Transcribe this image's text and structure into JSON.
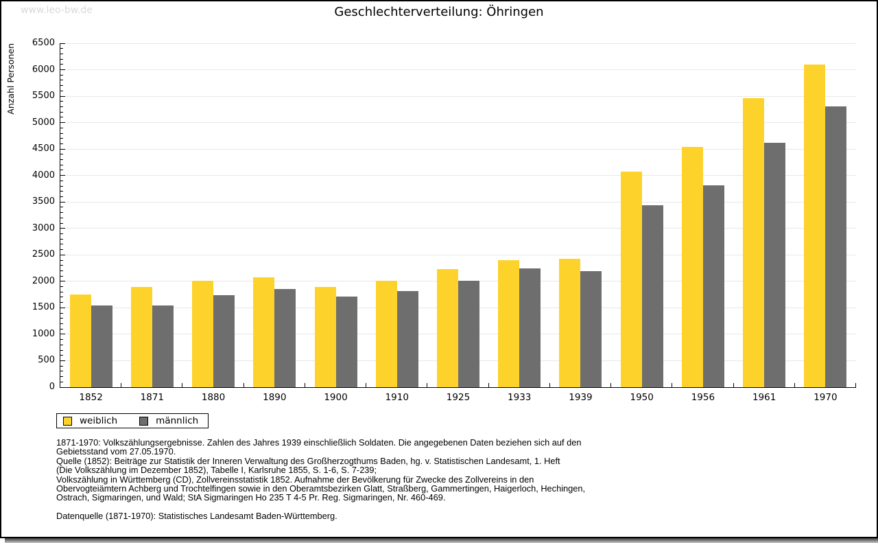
{
  "page": {
    "watermark": "www.leo-bw.de"
  },
  "chart_data": {
    "type": "bar",
    "title": "Geschlechterverteilung: Öhringen",
    "xlabel": "",
    "ylabel": "Anzahl Personen",
    "ylim": [
      0,
      6500
    ],
    "ytick_step": 500,
    "y_minor_step": 100,
    "grid": true,
    "legend_position": "bottom-left",
    "categories": [
      "1852",
      "1871",
      "1880",
      "1890",
      "1900",
      "1910",
      "1925",
      "1933",
      "1939",
      "1950",
      "1956",
      "1961",
      "1970"
    ],
    "series": [
      {
        "name": "weiblich",
        "color": "#fdd32b",
        "values": [
          1750,
          1900,
          2010,
          2070,
          1890,
          2010,
          2230,
          2400,
          2420,
          4070,
          4540,
          5460,
          6100
        ]
      },
      {
        "name": "männlich",
        "color": "#6e6e6e",
        "values": [
          1550,
          1550,
          1740,
          1860,
          1710,
          1820,
          2010,
          2240,
          2190,
          3440,
          3820,
          4620,
          5310
        ]
      }
    ]
  },
  "legend": {
    "items": [
      {
        "label": "weiblich",
        "color": "#fdd32b"
      },
      {
        "label": "männlich",
        "color": "#6e6e6e"
      }
    ]
  },
  "footnotes": {
    "lines": [
      "1871-1970: Volkszählungsergebnisse. Zahlen des Jahres 1939 einschließlich Soldaten. Die angegebenen Daten beziehen sich auf den",
      "Gebietsstand vom 27.05.1970.",
      "Quelle (1852): Beiträge zur Statistik der Inneren Verwaltung des Großherzogthums Baden, hg. v. Statistischen Landesamt, 1. Heft",
      "(Die Volkszählung im Dezember 1852), Tabelle I, Karlsruhe 1855, S. 1-6, S. 7-239;",
      "Volkszählung in Württemberg (CD), Zollvereinsstatistik 1852. Aufnahme der Bevölkerung für Zwecke des Zollvereins in den",
      "Obervogteiämtern Achberg und Trochtelfingen sowie in den Oberamtsbezirken Glatt, Straßberg, Gammertingen, Haigerloch, Hechingen,",
      "Ostrach, Sigmaringen, und Wald; StA Sigmaringen Ho 235 T 4-5 Pr. Reg. Sigmaringen, Nr. 460-469.",
      "",
      "Datenquelle (1871-1970): Statistisches Landesamt Baden-Württemberg."
    ]
  }
}
